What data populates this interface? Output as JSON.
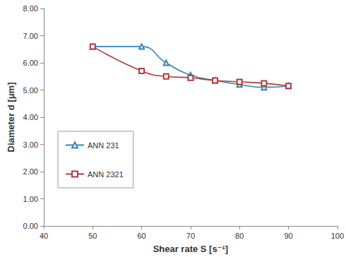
{
  "chart_data": {
    "type": "line",
    "x_label": "Shear rate S [s⁻¹]",
    "y_label": "Diameter d [μm]",
    "x": [
      50,
      60,
      65,
      70,
      75,
      80,
      85,
      90
    ],
    "series": [
      {
        "name": "ANN 231",
        "color": "#2e86c1",
        "marker": "triangle",
        "values": [
          6.6,
          6.6,
          6.0,
          5.55,
          5.35,
          5.2,
          5.1,
          5.15
        ]
      },
      {
        "name": "ANN 2321",
        "color": "#b03a3a",
        "marker": "square",
        "values": [
          6.6,
          5.7,
          5.5,
          5.45,
          5.35,
          5.3,
          5.25,
          5.15
        ]
      }
    ],
    "xlim": [
      40,
      100
    ],
    "xticks": [
      40,
      50,
      60,
      70,
      80,
      90,
      100
    ],
    "ylim": [
      0,
      8
    ],
    "yticks": [
      {
        "value": 0,
        "label": "0.00"
      },
      {
        "value": 1,
        "label": "1.00"
      },
      {
        "value": 2,
        "label": "2.00"
      },
      {
        "value": 3,
        "label": "3.00"
      },
      {
        "value": 4,
        "label": "4.00"
      },
      {
        "value": 5,
        "label": "5.00"
      },
      {
        "value": 6,
        "label": "6.00"
      },
      {
        "value": 7,
        "label": "7.00"
      },
      {
        "value": 8,
        "label": "8.00"
      }
    ],
    "grid": false,
    "legend": "left"
  }
}
